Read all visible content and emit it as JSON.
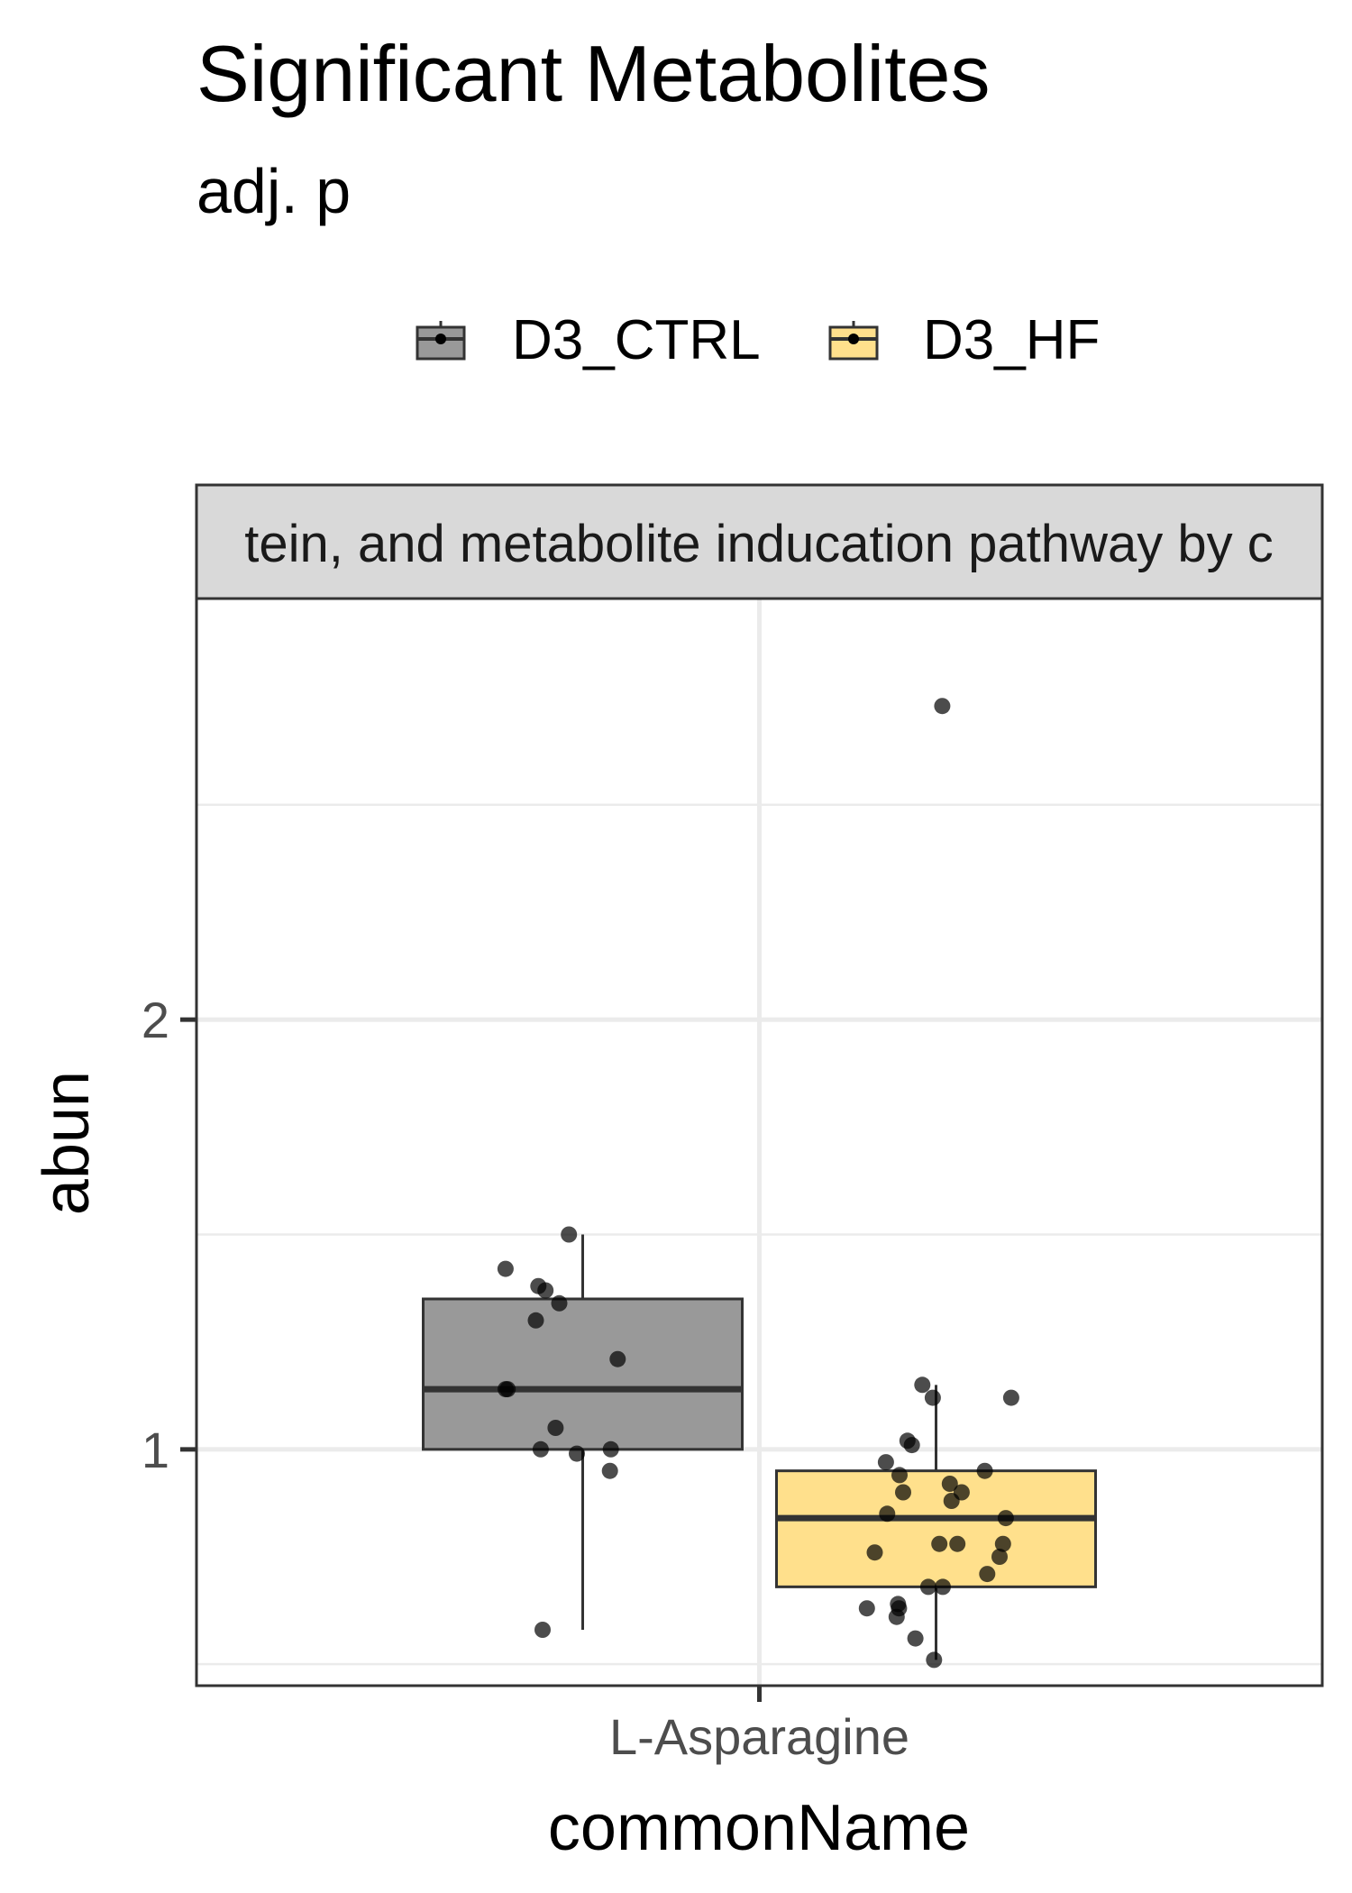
{
  "chart_data": {
    "type": "box",
    "title": "Significant Metabolites",
    "subtitle": "adj. p",
    "facet_label": "tein, and metabolite inducation pathway by c",
    "xlabel": "commonName",
    "ylabel": "abun",
    "categories": [
      "L-Asparagine"
    ],
    "ylim": [
      0.45,
      2.98
    ],
    "y_ticks": [
      1,
      2
    ],
    "y_minor_ticks": [
      0.5,
      1.5,
      2.5
    ],
    "grid": true,
    "legend_position": "top",
    "series": [
      {
        "name": "D3_CTRL",
        "color": "#999999",
        "box": {
          "whisker_low": 0.58,
          "q1": 1.0,
          "median": 1.14,
          "q3": 1.35,
          "whisker_high": 1.5
        },
        "points": [
          1.5,
          1.42,
          1.34,
          1.38,
          1.37,
          1.3,
          1.21,
          1.14,
          1.14,
          1.05,
          1.0,
          1.0,
          0.99,
          0.95,
          0.58
        ]
      },
      {
        "name": "D3_HF",
        "color": "#FFE08C",
        "box": {
          "whisker_low": 0.51,
          "q1": 0.68,
          "median": 0.84,
          "q3": 0.95,
          "whisker_high": 1.15
        },
        "points": [
          2.73,
          1.15,
          1.12,
          1.12,
          1.02,
          1.01,
          0.97,
          0.95,
          0.94,
          0.92,
          0.9,
          0.9,
          0.88,
          0.85,
          0.84,
          0.78,
          0.78,
          0.78,
          0.76,
          0.75,
          0.71,
          0.68,
          0.68,
          0.64,
          0.63,
          0.63,
          0.61,
          0.56,
          0.51
        ]
      }
    ]
  }
}
